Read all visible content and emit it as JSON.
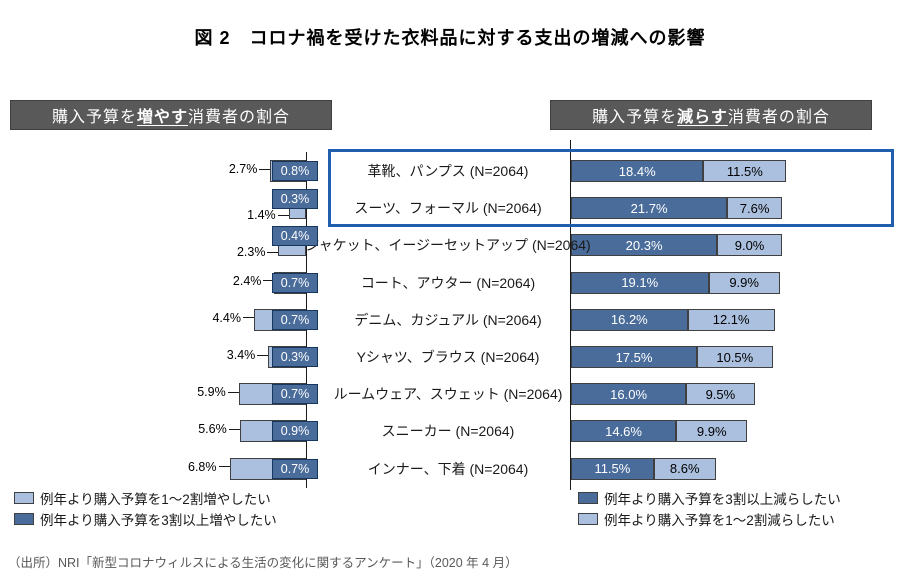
{
  "title": "図 2　コロナ禍を受けた衣料品に対する支出の増減への影響",
  "panel_headers": {
    "left": {
      "prefix": "購入予算を",
      "emphasis": "増やす",
      "suffix": "消費者の割合"
    },
    "right": {
      "prefix": "購入予算を",
      "emphasis": "減らす",
      "suffix": "消費者の割合"
    }
  },
  "legends": {
    "left": [
      {
        "swatch": "light-blue",
        "label": "例年より購入予算を1～2割増やしたい"
      },
      {
        "swatch": "dark-blue",
        "label": "例年より購入予算を3割以上増やしたい"
      }
    ],
    "right": [
      {
        "swatch": "dark-blue",
        "label": "例年より購入予算を3割以上減らしたい"
      },
      {
        "swatch": "light-blue",
        "label": "例年より購入予算を1～2割減らしたい"
      }
    ]
  },
  "source": "（出所）NRI「新型コロナウィルスによる生活の変化に関するアンケート」（2020 年 4 月）",
  "colors": {
    "dark_blue": "#4a6c9b",
    "light_blue": "#abc0de",
    "header_bg": "#595959",
    "highlight_border": "#1f5fae",
    "bar_border": "#404040"
  },
  "chart_data": {
    "type": "bar",
    "orientation": "horizontal-diverging",
    "unit": "%",
    "categories": [
      "革靴、パンプス (N=2064)",
      "スーツ、フォーマル (N=2064)",
      "ジャケット、イージーセットアップ (N=2064)",
      "コート、アウター (N=2064)",
      "デニム、カジュアル (N=2064)",
      "Yシャツ、ブラウス (N=2064)",
      "ルームウェア、スウェット (N=2064)",
      "スニーカー (N=2064)",
      "インナー、下着 (N=2064)"
    ],
    "series": [
      {
        "name": "例年より購入予算を1～2割増やしたい",
        "side": "left",
        "color": "light",
        "values": [
          2.7,
          1.4,
          2.3,
          2.4,
          4.4,
          3.4,
          5.9,
          5.6,
          6.8
        ]
      },
      {
        "name": "例年より購入予算を3割以上増やしたい",
        "side": "left",
        "color": "dark",
        "values": [
          0.8,
          0.3,
          0.4,
          0.7,
          0.7,
          0.3,
          0.7,
          0.9,
          0.7
        ]
      },
      {
        "name": "例年より購入予算を3割以上減らしたい",
        "side": "right",
        "color": "dark",
        "values": [
          18.4,
          21.7,
          20.3,
          19.1,
          16.2,
          17.5,
          16.0,
          14.6,
          11.5
        ]
      },
      {
        "name": "例年より購入予算を1～2割減らしたい",
        "side": "right",
        "color": "light",
        "values": [
          11.5,
          7.6,
          9.0,
          9.9,
          12.1,
          10.5,
          9.5,
          9.9,
          8.6
        ]
      }
    ],
    "highlighted_categories": [
      "革靴、パンプス (N=2064)",
      "スーツ、フォーマル (N=2064)"
    ],
    "legend_position": "bottom",
    "grid": false
  }
}
